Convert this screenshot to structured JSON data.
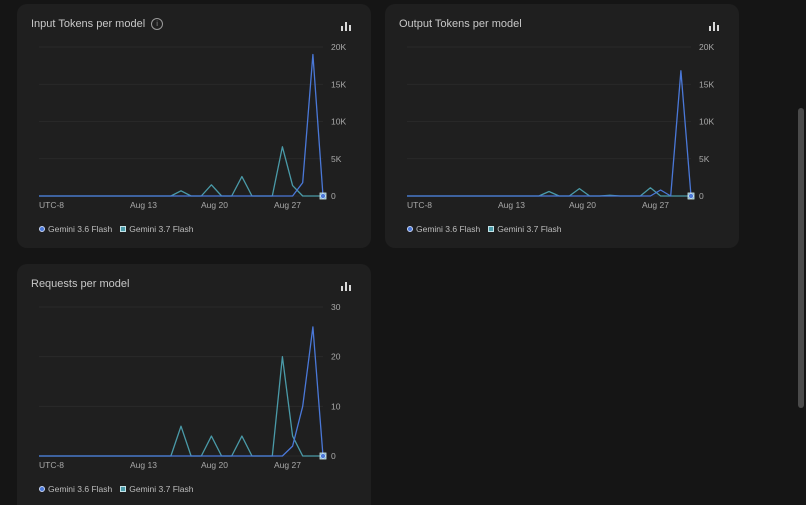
{
  "colors": {
    "background": "#151515",
    "card": "#1f1f1f",
    "series_36": "#4a78d8",
    "series_37": "#4a9aa8",
    "grid": "#2c2c2c",
    "axis_text": "#a9a9a9"
  },
  "icons": {
    "info": "info-circle-icon",
    "chart": "bar-chart-icon"
  },
  "legend": {
    "series_a": "Gemini 3.6 Flash",
    "series_b": "Gemini 3.7 Flash"
  },
  "cards": [
    {
      "title": "Input Tokens per model",
      "has_info": true
    },
    {
      "title": "Output Tokens per model",
      "has_info": false
    },
    {
      "title": "Requests per model",
      "has_info": false
    }
  ],
  "chart_data": [
    {
      "type": "line",
      "title": "Input Tokens per model",
      "x_ticks": [
        "UTC-8",
        "Aug 13",
        "Aug 20",
        "Aug 27"
      ],
      "y_ticks": [
        "0",
        "5K",
        "10K",
        "15K",
        "20K"
      ],
      "ylim": [
        0,
        20000
      ],
      "x_range": [
        0,
        28
      ],
      "grid": true,
      "legend_position": "bottom-left",
      "series": [
        {
          "name": "Gemini 3.6 Flash",
          "x": [
            0,
            25,
            26,
            27,
            28
          ],
          "values": [
            0,
            0,
            1800,
            19000,
            0
          ]
        },
        {
          "name": "Gemini 3.7 Flash",
          "x": [
            0,
            13,
            14,
            15,
            16,
            17,
            18,
            19,
            20,
            21,
            22,
            23,
            24,
            25,
            26,
            27,
            28
          ],
          "values": [
            0,
            0,
            700,
            0,
            0,
            1500,
            0,
            0,
            2600,
            0,
            0,
            0,
            6600,
            1400,
            0,
            0,
            0
          ]
        }
      ]
    },
    {
      "type": "line",
      "title": "Output Tokens per model",
      "x_ticks": [
        "UTC-8",
        "Aug 13",
        "Aug 20",
        "Aug 27"
      ],
      "y_ticks": [
        "0",
        "5K",
        "10K",
        "15K",
        "20K"
      ],
      "ylim": [
        0,
        20000
      ],
      "x_range": [
        0,
        28
      ],
      "grid": true,
      "legend_position": "bottom-left",
      "series": [
        {
          "name": "Gemini 3.6 Flash",
          "x": [
            0,
            24,
            25,
            26,
            27,
            28
          ],
          "values": [
            0,
            0,
            800,
            0,
            16800,
            0
          ]
        },
        {
          "name": "Gemini 3.7 Flash",
          "x": [
            0,
            13,
            14,
            15,
            16,
            17,
            18,
            19,
            20,
            21,
            22,
            23,
            24,
            25,
            26,
            27,
            28
          ],
          "values": [
            0,
            0,
            600,
            0,
            0,
            1000,
            0,
            0,
            100,
            0,
            0,
            0,
            1100,
            0,
            0,
            0,
            0
          ]
        }
      ]
    },
    {
      "type": "line",
      "title": "Requests per model",
      "x_ticks": [
        "UTC-8",
        "Aug 13",
        "Aug 20",
        "Aug 27"
      ],
      "y_ticks": [
        "0",
        "10",
        "20",
        "30"
      ],
      "ylim": [
        0,
        30
      ],
      "x_range": [
        0,
        28
      ],
      "grid": true,
      "legend_position": "bottom-left",
      "series": [
        {
          "name": "Gemini 3.6 Flash",
          "x": [
            0,
            24,
            25,
            26,
            27,
            28
          ],
          "values": [
            0,
            0,
            2,
            10,
            26,
            0
          ]
        },
        {
          "name": "Gemini 3.7 Flash",
          "x": [
            0,
            13,
            14,
            15,
            16,
            17,
            18,
            19,
            20,
            21,
            22,
            23,
            24,
            25,
            26,
            27,
            28
          ],
          "values": [
            0,
            0,
            6,
            0,
            0,
            4,
            0,
            0,
            4,
            0,
            0,
            0,
            20,
            4,
            0,
            0,
            0
          ]
        }
      ]
    }
  ]
}
